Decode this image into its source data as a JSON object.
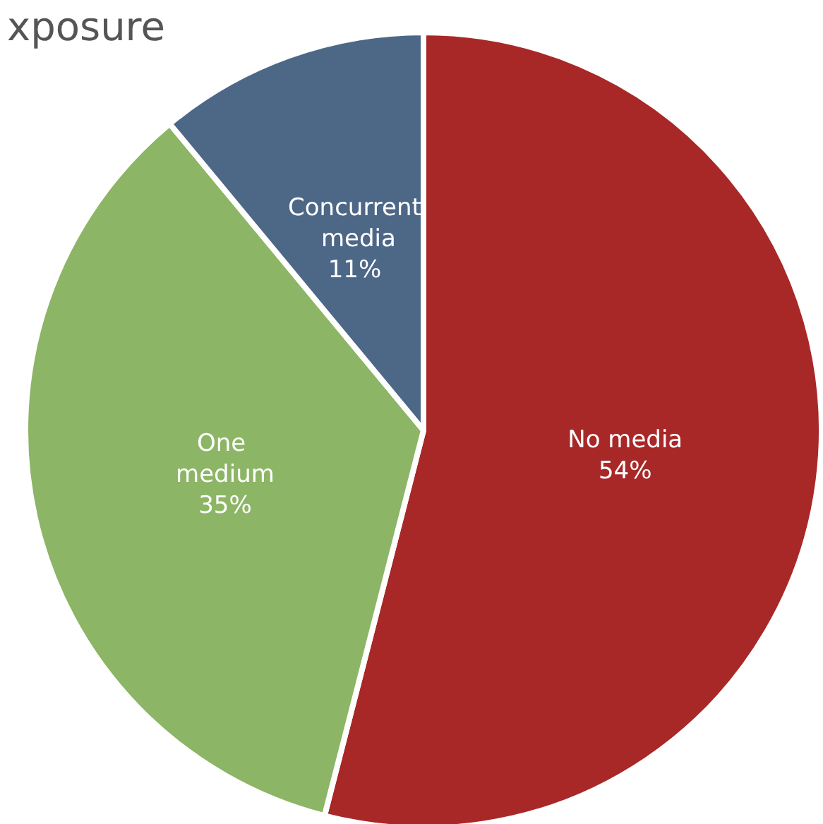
{
  "chart_data": {
    "type": "pie",
    "title": "xposure",
    "categories": [
      "No media",
      "One medium",
      "Concurrent media"
    ],
    "values": [
      54,
      35,
      11
    ],
    "colors": [
      "#a82828",
      "#8cb565",
      "#4d6787"
    ],
    "value_labels": [
      "54%",
      "35%",
      "11%"
    ],
    "legend": false
  }
}
